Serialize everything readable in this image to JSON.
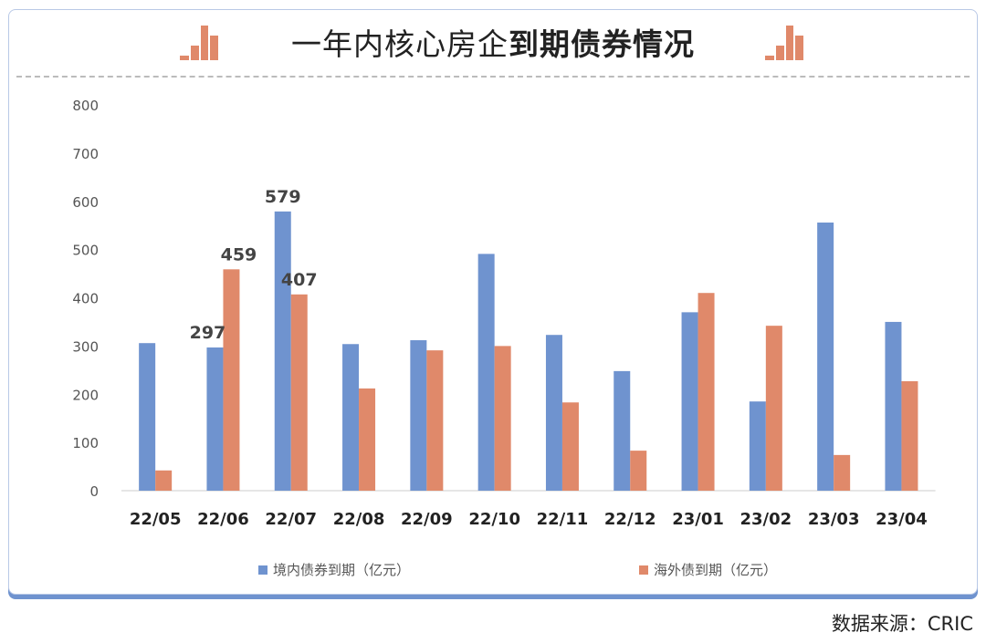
{
  "title": {
    "normal": "一年内核心房企",
    "bold": "到期债券情况"
  },
  "source": "数据来源：CRIC",
  "colors": {
    "domestic": "#6f93cf",
    "overseas": "#e0896a",
    "icon": "#e0896a"
  },
  "chart_data": {
    "type": "bar",
    "categories": [
      "22/05",
      "22/06",
      "22/07",
      "22/08",
      "22/09",
      "22/10",
      "22/11",
      "22/12",
      "23/01",
      "23/02",
      "23/03",
      "23/04"
    ],
    "ylim": [
      0,
      800
    ],
    "yticks": [
      0,
      100,
      200,
      300,
      400,
      500,
      600,
      700,
      800
    ],
    "grid": false,
    "legend_position": "bottom",
    "series": [
      {
        "name": "境内债券到期（亿元）",
        "values": [
          306,
          297,
          579,
          304,
          312,
          491,
          323,
          248,
          370,
          185,
          556,
          350
        ]
      },
      {
        "name": "海外债到期（亿元）",
        "values": [
          42,
          459,
          407,
          212,
          291,
          300,
          183,
          83,
          410,
          342,
          74,
          227
        ]
      }
    ],
    "data_labels": [
      {
        "series": 0,
        "index": 1,
        "text": "297"
      },
      {
        "series": 1,
        "index": 1,
        "text": "459"
      },
      {
        "series": 0,
        "index": 2,
        "text": "579"
      },
      {
        "series": 1,
        "index": 2,
        "text": "407"
      }
    ]
  }
}
